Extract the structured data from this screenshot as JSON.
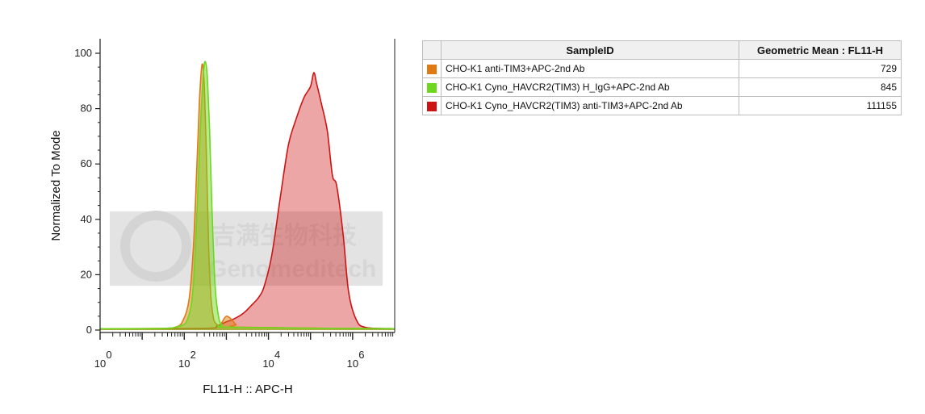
{
  "chart_data": {
    "type": "area",
    "ylabel": "Normalized To Mode",
    "xlabel": "FL11-H :: APC-H",
    "x_scale": "log10",
    "xlim": [
      1,
      10000000
    ],
    "ylim": [
      0,
      100
    ],
    "y_ticks": [
      "0",
      "20",
      "40",
      "60",
      "80",
      "100"
    ],
    "x_tick_bases": [
      "10",
      "10",
      "10",
      "10"
    ],
    "x_tick_exponents": [
      "0",
      "2",
      "4",
      "6"
    ],
    "watermark": {
      "cn": "吉满生物科技",
      "en": "Genomeditech"
    },
    "series": [
      {
        "name": "CHO-K1 anti-TIM3+APC-2nd Ab",
        "color": "#e07a12",
        "points": [
          [
            1,
            0.5
          ],
          [
            30,
            0.6
          ],
          [
            60,
            1
          ],
          [
            90,
            3
          ],
          [
            130,
            11
          ],
          [
            165,
            30
          ],
          [
            200,
            60
          ],
          [
            230,
            83
          ],
          [
            265,
            96
          ],
          [
            300,
            88
          ],
          [
            340,
            60
          ],
          [
            380,
            30
          ],
          [
            430,
            12
          ],
          [
            500,
            4
          ],
          [
            600,
            2
          ],
          [
            700,
            1.5
          ],
          [
            800,
            3
          ],
          [
            1000,
            5
          ],
          [
            1300,
            4
          ],
          [
            1700,
            2
          ],
          [
            2500,
            1
          ],
          [
            10000000,
            0.5
          ]
        ]
      },
      {
        "name": "CHO-K1 Cyno_HAVCR2(TIM3) H_IgG+APC-2nd Ab",
        "color": "#6cd71c",
        "points": [
          [
            1,
            0.5
          ],
          [
            30,
            0.6
          ],
          [
            80,
            1.5
          ],
          [
            120,
            4
          ],
          [
            160,
            14
          ],
          [
            200,
            42
          ],
          [
            240,
            72
          ],
          [
            280,
            91
          ],
          [
            310,
            97
          ],
          [
            350,
            92
          ],
          [
            400,
            72
          ],
          [
            460,
            42
          ],
          [
            540,
            16
          ],
          [
            650,
            5
          ],
          [
            800,
            2
          ],
          [
            1500,
            1
          ],
          [
            10000000,
            0.5
          ]
        ]
      },
      {
        "name": "CHO-K1 Cyno_HAVCR2(TIM3) anti-TIM3+APC-2nd Ab",
        "color": "#cc1414",
        "points": [
          [
            1,
            0.5
          ],
          [
            300,
            0.6
          ],
          [
            600,
            1.5
          ],
          [
            1000,
            3
          ],
          [
            1500,
            4
          ],
          [
            2500,
            6
          ],
          [
            4000,
            9
          ],
          [
            6000,
            12
          ],
          [
            8000,
            16
          ],
          [
            12000,
            27
          ],
          [
            20000,
            50
          ],
          [
            30000,
            67
          ],
          [
            45000,
            76
          ],
          [
            70000,
            84
          ],
          [
            100000,
            88
          ],
          [
            120000,
            93
          ],
          [
            140000,
            89
          ],
          [
            180000,
            82
          ],
          [
            250000,
            72
          ],
          [
            330000,
            56
          ],
          [
            420000,
            52
          ],
          [
            600000,
            34
          ],
          [
            800000,
            14
          ],
          [
            1200000,
            4
          ],
          [
            2000000,
            1
          ],
          [
            10000000,
            0.5
          ]
        ]
      }
    ],
    "table": {
      "headers": [
        "SampleID",
        "Geometric Mean : FL11-H"
      ],
      "rows": [
        {
          "sample": "CHO-K1 anti-TIM3+APC-2nd Ab",
          "mean": "729",
          "color": "#e07a12"
        },
        {
          "sample": "CHO-K1 Cyno_HAVCR2(TIM3) H_IgG+APC-2nd Ab",
          "mean": "845",
          "color": "#6cd71c"
        },
        {
          "sample": "CHO-K1 Cyno_HAVCR2(TIM3) anti-TIM3+APC-2nd Ab",
          "mean": "111155",
          "color": "#cc1414"
        }
      ]
    }
  }
}
